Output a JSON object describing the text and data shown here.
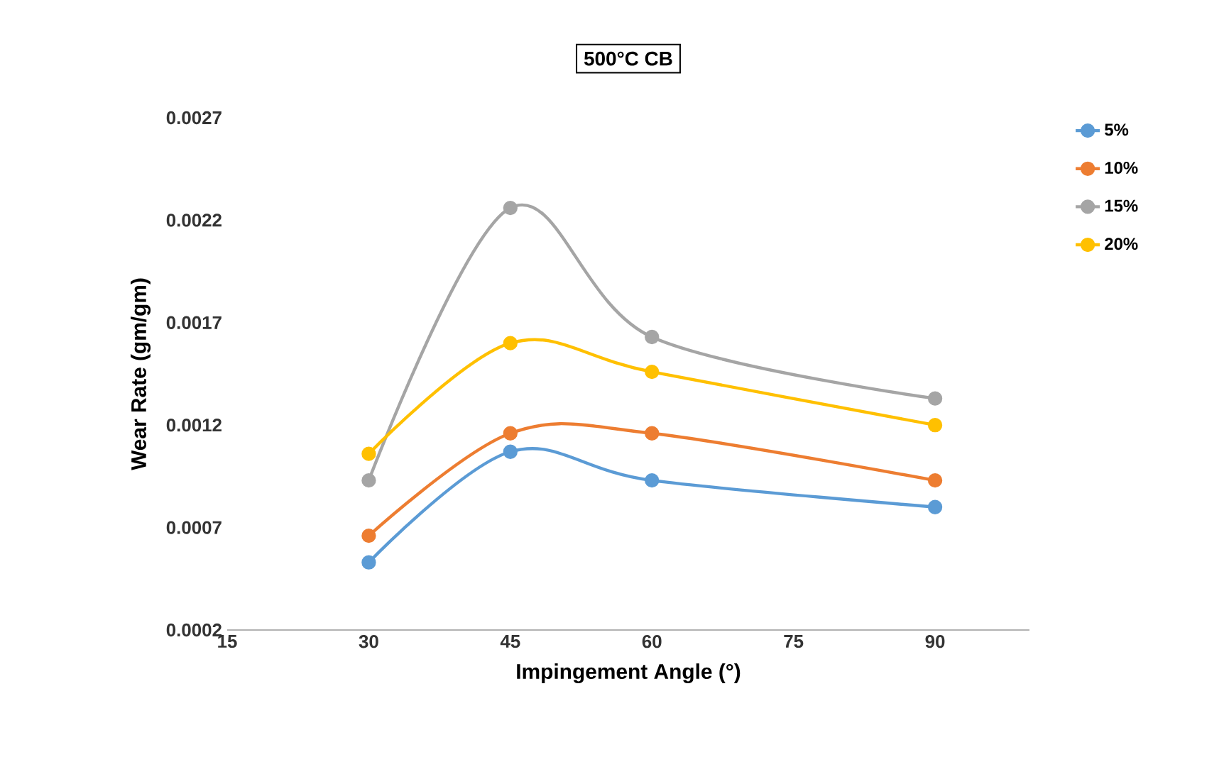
{
  "chart_data": {
    "type": "line",
    "title": "500°C CB",
    "xlabel": "Impingement Angle (°)",
    "ylabel": "Wear Rate (gm/gm)",
    "x": [
      30,
      45,
      60,
      90
    ],
    "series": [
      {
        "name": "5%",
        "color": "#5b9bd5",
        "values": [
          0.00053,
          0.00107,
          0.00093,
          0.0008
        ]
      },
      {
        "name": "10%",
        "color": "#ed7d31",
        "values": [
          0.00066,
          0.00116,
          0.00116,
          0.00093
        ]
      },
      {
        "name": "15%",
        "color": "#a5a5a5",
        "values": [
          0.00093,
          0.00226,
          0.00163,
          0.00133
        ]
      },
      {
        "name": "20%",
        "color": "#ffc000",
        "values": [
          0.00106,
          0.0016,
          0.00146,
          0.0012
        ]
      }
    ],
    "xlim": [
      15,
      100
    ],
    "xticks": [
      15,
      30,
      45,
      60,
      75,
      90
    ],
    "ylim": [
      0.0002,
      0.0027
    ],
    "yticks": [
      0.0002,
      0.0007,
      0.0012,
      0.0017,
      0.0022,
      0.0027
    ],
    "marker": "circle",
    "line_style": "solid",
    "legend": "right",
    "grid": false
  }
}
